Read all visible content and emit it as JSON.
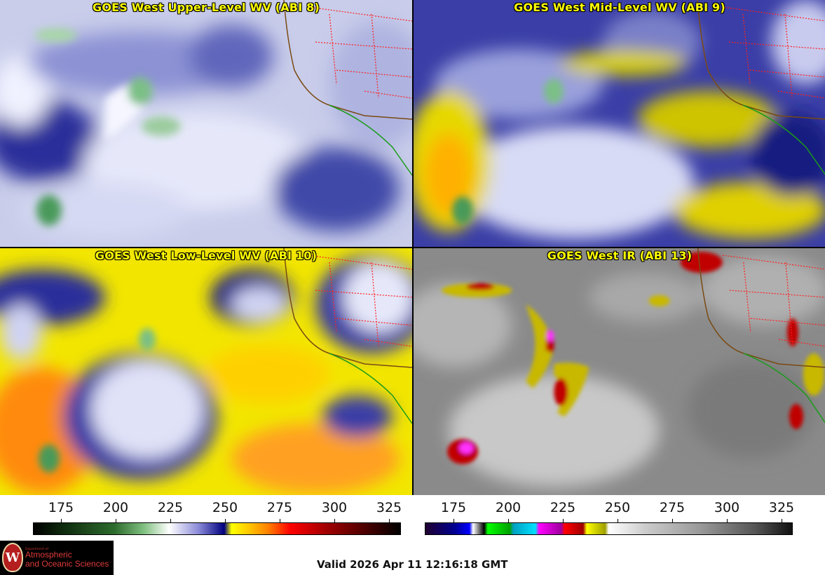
{
  "panels": [
    {
      "title": "GOES West Upper-Level WV (ABI 8)"
    },
    {
      "title": "GOES West Mid-Level WV (ABI 9)"
    },
    {
      "title": "GOES West Low-Level WV (ABI 10)"
    },
    {
      "title": "GOES West IR (ABI 13)"
    }
  ],
  "colorbars": {
    "left_ticks": [
      "175",
      "200",
      "225",
      "250",
      "275",
      "300",
      "325"
    ],
    "right_ticks": [
      "175",
      "200",
      "225",
      "250",
      "275",
      "300",
      "325"
    ]
  },
  "logo": {
    "seal_letter": "W",
    "dept_small": "Department of",
    "dept_line1": "Atmospheric",
    "dept_line2": "and Oceanic Sciences"
  },
  "valid_time": "Valid 2026 Apr 11 12:16:18 GMT",
  "colors": {
    "title_yellow": "#ffff00",
    "coast_brown": "#7a4a12",
    "state_border_red": "#ff2020",
    "mexico_border_green": "#1a9a1a"
  }
}
